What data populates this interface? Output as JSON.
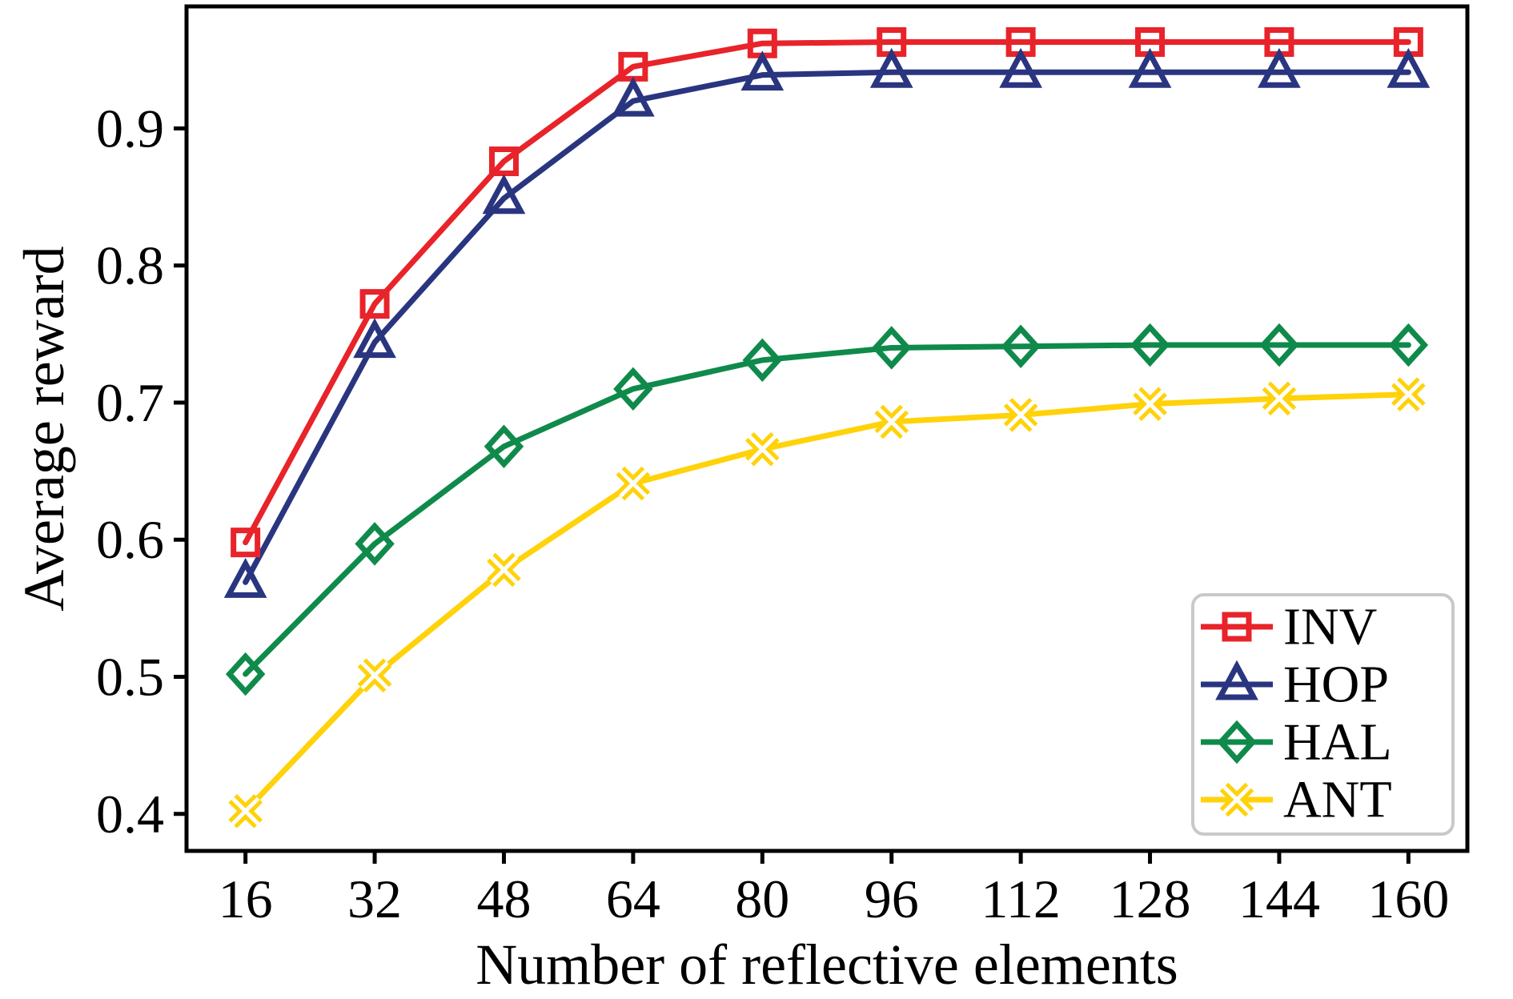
{
  "figure": {
    "background": "#ffffff",
    "axis_color": "#000000",
    "legend_border_color": "#c9c9c9",
    "legend_background": "#ffffff"
  },
  "chart_data": {
    "type": "line",
    "title": "",
    "xlabel": "Number of reflective elements",
    "ylabel": "Average reward",
    "x": [
      16,
      32,
      48,
      64,
      80,
      96,
      112,
      128,
      144,
      160
    ],
    "xtick_labels": [
      "16",
      "32",
      "48",
      "64",
      "80",
      "96",
      "112",
      "128",
      "144",
      "160"
    ],
    "ytick_values": [
      0.4,
      0.5,
      0.6,
      0.7,
      0.8,
      0.9
    ],
    "ytick_labels": [
      "0.4",
      "0.5",
      "0.6",
      "0.7",
      "0.8",
      "0.9"
    ],
    "xlim": [
      8.7,
      167.3
    ],
    "ylim": [
      0.373,
      0.989
    ],
    "grid": false,
    "legend_position": "lower right",
    "series": [
      {
        "name": "INV",
        "color": "#e8232a",
        "marker": "square",
        "values": [
          0.598,
          0.772,
          0.876,
          0.945,
          0.962,
          0.963,
          0.963,
          0.963,
          0.963,
          0.963
        ]
      },
      {
        "name": "HOP",
        "color": "#2a3580",
        "marker": "triangle-up",
        "values": [
          0.569,
          0.744,
          0.849,
          0.92,
          0.939,
          0.941,
          0.941,
          0.941,
          0.941,
          0.941
        ]
      },
      {
        "name": "HAL",
        "color": "#0f8a4a",
        "marker": "diamond",
        "values": [
          0.502,
          0.597,
          0.668,
          0.71,
          0.731,
          0.74,
          0.741,
          0.742,
          0.742,
          0.742
        ]
      },
      {
        "name": "ANT",
        "color": "#ffd20a",
        "marker": "x-thick",
        "values": [
          0.402,
          0.501,
          0.578,
          0.641,
          0.666,
          0.686,
          0.691,
          0.699,
          0.703,
          0.706
        ]
      }
    ]
  }
}
